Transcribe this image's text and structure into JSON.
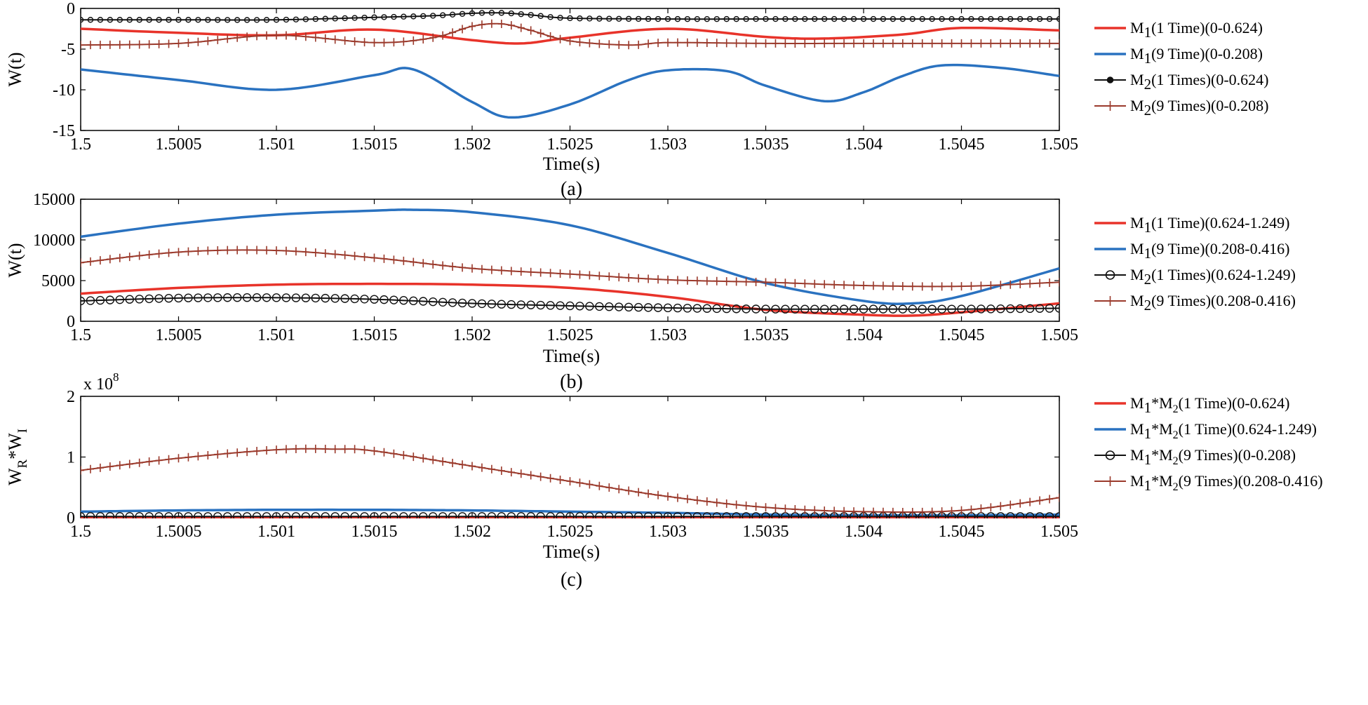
{
  "chart_data": [
    {
      "type": "line",
      "panel_label": "(a)",
      "xlabel": "Time(s)",
      "ylabel": "W(t)",
      "xlim": [
        1.5,
        1.505
      ],
      "ylim": [
        -15,
        0
      ],
      "x_ticks": [
        1.5,
        1.5005,
        1.501,
        1.5015,
        1.502,
        1.5025,
        1.503,
        1.5035,
        1.504,
        1.5045,
        1.505
      ],
      "x_tick_labels": [
        "1.5",
        "1.5005",
        "1.501",
        "1.5015",
        "1.502",
        "1.5025",
        "1.503",
        "1.5035",
        "1.504",
        "1.5045",
        "1.505"
      ],
      "y_ticks": [
        -15,
        -10,
        -5,
        0
      ],
      "y_tick_labels": [
        "-15",
        "-10",
        "-5",
        "0"
      ],
      "legend_position": "right",
      "series": [
        {
          "name": "M1(1 Time)(0-0.624)",
          "legend_base": "M",
          "legend_sub": "1",
          "legend_rest": "(1 Time)(0-0.624)",
          "color": "#e8332a",
          "marker": "none",
          "x": [
            1.5,
            1.5005,
            1.501,
            1.5015,
            1.502,
            1.50225,
            1.5025,
            1.503,
            1.5035,
            1.5038,
            1.5042,
            1.5045,
            1.505
          ],
          "y": [
            -2.5,
            -3.0,
            -3.3,
            -2.6,
            -3.9,
            -4.3,
            -3.6,
            -2.5,
            -3.5,
            -3.7,
            -3.2,
            -2.4,
            -2.7
          ]
        },
        {
          "name": "M1(9 Time)(0-0.208)",
          "legend_base": "M",
          "legend_sub": "1",
          "legend_rest": "(9 Time)(0-0.208)",
          "color": "#2a72c0",
          "marker": "none",
          "x": [
            1.5,
            1.5005,
            1.501,
            1.5015,
            1.5017,
            1.502,
            1.5022,
            1.5025,
            1.5028,
            1.503,
            1.5033,
            1.5035,
            1.5038,
            1.504,
            1.5042,
            1.5044,
            1.5047,
            1.505
          ],
          "y": [
            -7.5,
            -8.8,
            -10.0,
            -8.2,
            -7.5,
            -11.5,
            -13.4,
            -11.8,
            -8.8,
            -7.6,
            -7.7,
            -9.5,
            -11.4,
            -10.3,
            -8.3,
            -7.0,
            -7.3,
            -8.3
          ]
        },
        {
          "name": "M2(1 Times)(0-0.624)",
          "legend_base": "M",
          "legend_sub": "2",
          "legend_rest": "(1 Times)(0-0.624)",
          "color": "#111111",
          "marker": "circle-small",
          "x": [
            1.5,
            1.5005,
            1.501,
            1.5015,
            1.5018,
            1.502,
            1.50215,
            1.5023,
            1.5025,
            1.503,
            1.5035,
            1.504,
            1.5045,
            1.505
          ],
          "y": [
            -1.4,
            -1.4,
            -1.4,
            -1.1,
            -0.9,
            -0.6,
            -0.55,
            -0.8,
            -1.2,
            -1.3,
            -1.3,
            -1.3,
            -1.3,
            -1.3
          ]
        },
        {
          "name": "M2(9 Times)(0-0.208)",
          "legend_base": "M",
          "legend_sub": "2",
          "legend_rest": "(9 Times)(0-0.208)",
          "color": "#9b3a2c",
          "marker": "plus",
          "x": [
            1.5,
            1.5005,
            1.501,
            1.5015,
            1.5018,
            1.502,
            1.50215,
            1.5023,
            1.5025,
            1.5028,
            1.503,
            1.5035,
            1.504,
            1.5045,
            1.505
          ],
          "y": [
            -4.5,
            -4.3,
            -3.3,
            -4.2,
            -3.6,
            -2.2,
            -1.9,
            -2.7,
            -4.0,
            -4.5,
            -4.2,
            -4.3,
            -4.3,
            -4.3,
            -4.3
          ]
        }
      ]
    },
    {
      "type": "line",
      "panel_label": "(b)",
      "xlabel": "Time(s)",
      "ylabel": "W(t)",
      "xlim": [
        1.5,
        1.505
      ],
      "ylim": [
        0,
        15000
      ],
      "x_ticks": [
        1.5,
        1.5005,
        1.501,
        1.5015,
        1.502,
        1.5025,
        1.503,
        1.5035,
        1.504,
        1.5045,
        1.505
      ],
      "x_tick_labels": [
        "1.5",
        "1.5005",
        "1.501",
        "1.5015",
        "1.502",
        "1.5025",
        "1.503",
        "1.5035",
        "1.504",
        "1.5045",
        "1.505"
      ],
      "y_ticks": [
        0,
        5000,
        10000,
        15000
      ],
      "y_tick_labels": [
        "0",
        "5000",
        "10000",
        "15000"
      ],
      "legend_position": "right",
      "series": [
        {
          "name": "M1(1 Time)(0.624-1.249)",
          "legend_base": "M",
          "legend_sub": "1",
          "legend_rest": "(1 Time)(0.624-1.249)",
          "color": "#e8332a",
          "marker": "none",
          "x": [
            1.5,
            1.5005,
            1.501,
            1.5015,
            1.502,
            1.5025,
            1.503,
            1.5035,
            1.504,
            1.50425,
            1.5045,
            1.505
          ],
          "y": [
            3400,
            4100,
            4500,
            4600,
            4500,
            4100,
            3000,
            1400,
            800,
            700,
            1100,
            2200
          ]
        },
        {
          "name": "M1(9 Time)(0.208-0.416)",
          "legend_base": "M",
          "legend_sub": "1",
          "legend_rest": "(9 Time)(0.208-0.416)",
          "color": "#2a72c0",
          "marker": "none",
          "x": [
            1.5,
            1.5005,
            1.501,
            1.5015,
            1.5017,
            1.502,
            1.5025,
            1.503,
            1.5035,
            1.504,
            1.50425,
            1.5045,
            1.505
          ],
          "y": [
            10400,
            12000,
            13100,
            13600,
            13700,
            13400,
            11800,
            8400,
            4700,
            2500,
            2200,
            3100,
            6500
          ]
        },
        {
          "name": "M2(1 Times)(0.624-1.249)",
          "legend_base": "M",
          "legend_sub": "2",
          "legend_rest": "(1 Times)(0.624-1.249)",
          "color": "#111111",
          "marker": "circle",
          "x": [
            1.5,
            1.5005,
            1.501,
            1.5015,
            1.502,
            1.5025,
            1.503,
            1.5035,
            1.504,
            1.5045,
            1.505
          ],
          "y": [
            2500,
            2850,
            2900,
            2700,
            2200,
            1900,
            1650,
            1500,
            1500,
            1500,
            1600
          ]
        },
        {
          "name": "M2(9 Times)(0.208-0.416)",
          "legend_base": "M",
          "legend_sub": "2",
          "legend_rest": "(9 Times)(0.208-0.416)",
          "color": "#9b3a2c",
          "marker": "plus",
          "x": [
            1.5,
            1.5005,
            1.501,
            1.5015,
            1.502,
            1.5025,
            1.503,
            1.5035,
            1.504,
            1.5045,
            1.505
          ],
          "y": [
            7200,
            8500,
            8700,
            7800,
            6500,
            5800,
            5100,
            4800,
            4400,
            4300,
            4800
          ]
        }
      ]
    },
    {
      "type": "line",
      "panel_label": "(c)",
      "xlabel": "Time(s)",
      "ylabel": "WR*WI",
      "ylabel_parts": {
        "a": "W",
        "a_sub": "R",
        "mid": "*W",
        "b_sub": "I"
      },
      "multiplier_prefix": "x 10",
      "multiplier_exp": "8",
      "xlim": [
        1.5,
        1.505
      ],
      "ylim": [
        0,
        2
      ],
      "x_ticks": [
        1.5,
        1.5005,
        1.501,
        1.5015,
        1.502,
        1.5025,
        1.503,
        1.5035,
        1.504,
        1.5045,
        1.505
      ],
      "x_tick_labels": [
        "1.5",
        "1.5005",
        "1.501",
        "1.5015",
        "1.502",
        "1.5025",
        "1.503",
        "1.5035",
        "1.504",
        "1.5045",
        "1.505"
      ],
      "y_ticks": [
        0,
        1,
        2
      ],
      "y_tick_labels": [
        "0",
        "1",
        "2"
      ],
      "legend_position": "right",
      "series": [
        {
          "name": "M1*M2(1 Time)(0-0.624)",
          "legend_base": "M",
          "legend_sub": "1",
          "legend_mid": "*M",
          "legend_sub2": "2",
          "legend_rest": "(1 Time)(0-0.624)",
          "color": "#e8332a",
          "marker": "none",
          "x": [
            1.5,
            1.505
          ],
          "y": [
            0.0,
            0.0
          ]
        },
        {
          "name": "M1*M2(1 Time)(0.624-1.249)",
          "legend_base": "M",
          "legend_sub": "1",
          "legend_mid": "*M",
          "legend_sub2": "2",
          "legend_rest": "(1 Time)(0.624-1.249)",
          "color": "#2a72c0",
          "marker": "none",
          "x": [
            1.5,
            1.5005,
            1.501,
            1.5015,
            1.502,
            1.5025,
            1.503,
            1.5035,
            1.504,
            1.5045,
            1.505
          ],
          "y": [
            0.1,
            0.12,
            0.13,
            0.13,
            0.12,
            0.1,
            0.08,
            0.05,
            0.04,
            0.04,
            0.05
          ]
        },
        {
          "name": "M1*M2(9 Times)(0-0.208)",
          "legend_base": "M",
          "legend_sub": "1",
          "legend_mid": "*M",
          "legend_sub2": "2",
          "legend_rest": "(9 Times)(0-0.208)",
          "color": "#111111",
          "marker": "circle",
          "x": [
            1.5,
            1.505
          ],
          "y": [
            0.02,
            0.02
          ]
        },
        {
          "name": "M1*M2(9 Times)(0.208-0.416)",
          "legend_base": "M",
          "legend_sub": "1",
          "legend_mid": "*M",
          "legend_sub2": "2",
          "legend_rest": "(9 Times)(0.208-0.416)",
          "color": "#9b3a2c",
          "marker": "plus",
          "x": [
            1.5,
            1.5005,
            1.501,
            1.5013,
            1.5015,
            1.502,
            1.5025,
            1.503,
            1.5035,
            1.504,
            1.5045,
            1.505
          ],
          "y": [
            0.78,
            0.98,
            1.12,
            1.13,
            1.1,
            0.85,
            0.6,
            0.35,
            0.17,
            0.1,
            0.12,
            0.33
          ]
        }
      ]
    }
  ]
}
